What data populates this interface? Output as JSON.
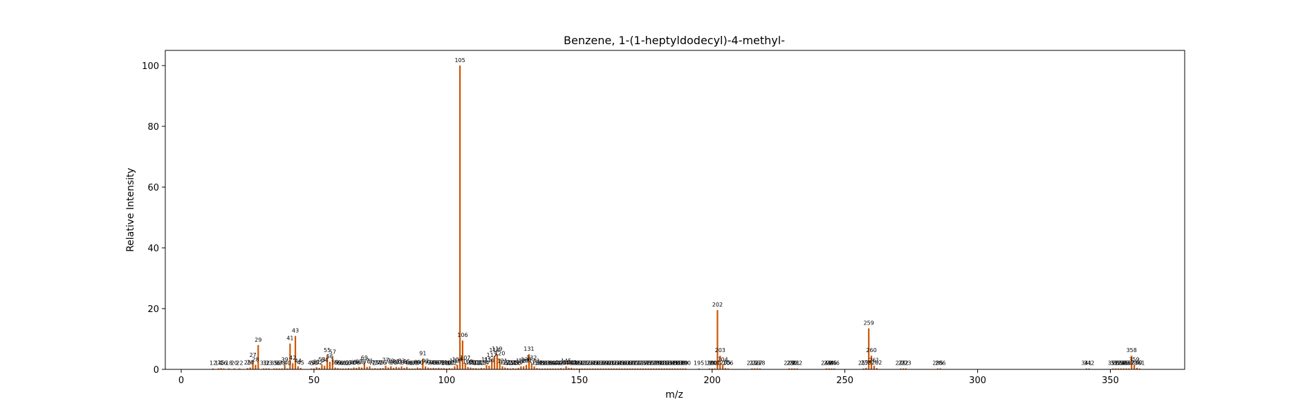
{
  "chart_data": {
    "type": "bar",
    "title": "Benzene, 1-(1-heptyldodecyl)-4-methyl-",
    "xlabel": "m/z",
    "ylabel": "Relative Intensity",
    "xlim": [
      -6,
      378
    ],
    "ylim": [
      0,
      105
    ],
    "xticks": [
      0,
      50,
      100,
      150,
      200,
      250,
      300,
      350
    ],
    "yticks": [
      0,
      20,
      40,
      60,
      80,
      100
    ],
    "grid": false,
    "bar_color": "#cc5500",
    "series": [
      {
        "x": [
          12,
          14,
          15,
          16,
          18,
          20,
          22,
          25,
          26,
          27,
          28,
          29,
          31,
          32,
          33,
          35,
          36,
          37,
          38,
          39,
          40,
          41,
          42,
          43,
          44,
          45,
          49,
          50,
          51,
          52,
          53,
          54,
          55,
          56,
          57,
          58,
          59,
          60,
          61,
          62,
          63,
          64,
          65,
          66,
          67,
          68,
          69,
          70,
          71,
          72,
          73,
          74,
          75,
          76,
          77,
          78,
          79,
          80,
          81,
          82,
          83,
          84,
          85,
          86,
          87,
          88,
          89,
          90,
          91,
          92,
          93,
          94,
          95,
          96,
          97,
          98,
          99,
          100,
          101,
          102,
          103,
          104,
          105,
          106,
          107,
          108,
          109,
          110,
          111,
          112,
          113,
          114,
          115,
          116,
          117,
          118,
          119,
          120,
          121,
          122,
          123,
          124,
          125,
          126,
          127,
          128,
          129,
          130,
          131,
          132,
          133,
          134,
          135,
          136,
          137,
          138,
          139,
          140,
          141,
          142,
          143,
          144,
          145,
          146,
          147,
          148,
          149,
          150,
          151,
          152,
          153,
          154,
          155,
          156,
          157,
          158,
          159,
          160,
          161,
          162,
          163,
          164,
          165,
          166,
          167,
          168,
          169,
          170,
          171,
          172,
          173,
          174,
          175,
          176,
          177,
          178,
          179,
          180,
          181,
          182,
          183,
          184,
          185,
          186,
          187,
          188,
          189,
          190,
          195,
          199,
          200,
          201,
          202,
          203,
          204,
          205,
          206,
          215,
          216,
          217,
          218,
          229,
          230,
          231,
          232,
          243,
          244,
          245,
          246,
          257,
          258,
          259,
          260,
          261,
          262,
          271,
          272,
          273,
          285,
          286,
          341,
          342,
          351,
          352,
          353,
          354,
          355,
          356,
          357,
          358,
          359,
          360,
          361
        ],
        "values": [
          0.3,
          0.3,
          0.4,
          0.3,
          0.3,
          0.3,
          0.3,
          0.4,
          0.6,
          3.0,
          1.5,
          8.0,
          0.3,
          0.3,
          0.3,
          0.3,
          0.3,
          0.3,
          0.3,
          1.5,
          0.3,
          8.5,
          2.0,
          11.0,
          1.0,
          0.5,
          0.3,
          0.3,
          0.7,
          0.5,
          1.5,
          1.2,
          4.5,
          2.5,
          4.0,
          0.6,
          0.4,
          0.3,
          0.3,
          0.3,
          0.4,
          0.3,
          0.6,
          0.5,
          0.8,
          0.6,
          2.0,
          0.8,
          1.0,
          0.3,
          0.4,
          0.3,
          0.4,
          0.4,
          1.2,
          0.6,
          1.0,
          0.5,
          0.8,
          0.6,
          1.0,
          0.5,
          0.8,
          0.3,
          0.3,
          0.3,
          0.6,
          0.4,
          3.5,
          1.0,
          0.6,
          0.4,
          0.5,
          0.4,
          0.5,
          0.4,
          0.4,
          0.3,
          0.4,
          0.3,
          1.0,
          1.5,
          100.0,
          9.5,
          2.0,
          0.8,
          0.6,
          0.4,
          0.4,
          0.3,
          0.5,
          0.4,
          1.5,
          1.2,
          3.0,
          4.5,
          5.0,
          3.5,
          1.0,
          0.6,
          0.4,
          0.3,
          0.4,
          0.3,
          0.5,
          1.0,
          1.0,
          1.5,
          5.0,
          2.0,
          1.0,
          0.4,
          0.3,
          0.3,
          0.3,
          0.3,
          0.3,
          0.3,
          0.3,
          0.3,
          0.4,
          0.3,
          1.0,
          0.5,
          0.5,
          0.3,
          0.3,
          0.3,
          0.3,
          0.3,
          0.3,
          0.3,
          0.3,
          0.3,
          0.3,
          0.3,
          0.3,
          0.3,
          0.3,
          0.3,
          0.3,
          0.3,
          0.3,
          0.3,
          0.3,
          0.3,
          0.3,
          0.3,
          0.3,
          0.3,
          0.3,
          0.3,
          0.3,
          0.3,
          0.3,
          0.3,
          0.3,
          0.3,
          0.3,
          0.3,
          0.3,
          0.3,
          0.3,
          0.3,
          0.3,
          0.3,
          0.3,
          0.3,
          0.3,
          0.3,
          0.3,
          0.3,
          19.5,
          4.5,
          1.5,
          0.4,
          0.3,
          0.3,
          0.3,
          0.3,
          0.3,
          0.3,
          0.3,
          0.3,
          0.3,
          0.3,
          0.3,
          0.3,
          0.3,
          0.3,
          0.5,
          13.5,
          4.5,
          1.2,
          0.4,
          0.3,
          0.3,
          0.3,
          0.3,
          0.3,
          0.3,
          0.3,
          0.3,
          0.3,
          0.3,
          0.3,
          0.3,
          0.3,
          0.3,
          4.5,
          1.5,
          0.5,
          0.3
        ]
      }
    ]
  }
}
